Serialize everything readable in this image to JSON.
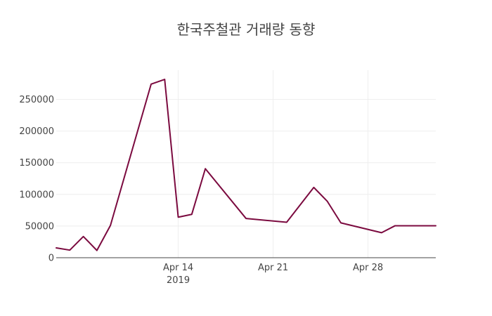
{
  "chart_data": {
    "type": "line",
    "title": "한국주철관 거래량 동향",
    "xlabel": "",
    "ylabel": "",
    "x": [
      "2019-04-05",
      "2019-04-06",
      "2019-04-07",
      "2019-04-08",
      "2019-04-09",
      "2019-04-12",
      "2019-04-13",
      "2019-04-14",
      "2019-04-15",
      "2019-04-16",
      "2019-04-19",
      "2019-04-22",
      "2019-04-24",
      "2019-04-25",
      "2019-04-26",
      "2019-04-29",
      "2019-04-30",
      "2019-05-02",
      "2019-05-03"
    ],
    "series": [
      {
        "values": [
          15500,
          12000,
          33500,
          11500,
          51000,
          274000,
          281500,
          64000,
          68500,
          140500,
          62000,
          56000,
          111000,
          89000,
          55000,
          39500,
          50500,
          50500,
          50500
        ]
      }
    ],
    "xlim": [
      "2019-04-05",
      "2019-05-03"
    ],
    "ylim": [
      0,
      296000
    ],
    "xticks": [
      {
        "value": "2019-04-14",
        "label": "Apr 14",
        "sublabel": "2019"
      },
      {
        "value": "2019-04-21",
        "label": "Apr 21",
        "sublabel": ""
      },
      {
        "value": "2019-04-28",
        "label": "Apr 28",
        "sublabel": ""
      }
    ],
    "yticks": [
      {
        "value": 0,
        "label": "0"
      },
      {
        "value": 50000,
        "label": "50000"
      },
      {
        "value": 100000,
        "label": "100000"
      },
      {
        "value": 150000,
        "label": "150000"
      },
      {
        "value": 200000,
        "label": "200000"
      },
      {
        "value": 250000,
        "label": "250000"
      }
    ],
    "grid": true,
    "legend": "none",
    "colors": {
      "line": "#7b0a3f",
      "grid": "#eeeeee",
      "text": "#444444"
    }
  }
}
